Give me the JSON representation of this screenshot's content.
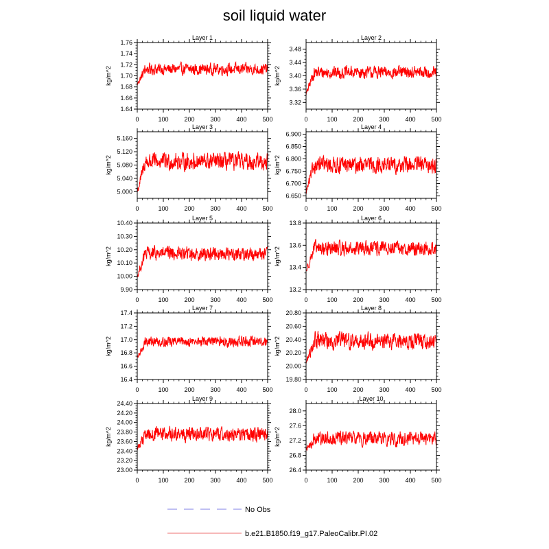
{
  "figure": {
    "title": "soil liquid water"
  },
  "legend": {
    "items": [
      {
        "label": "No Obs",
        "style": "dashed",
        "color": "#aaaaee"
      },
      {
        "label": "b.e21.B1850.f19_g17.PaleoCalibr.PI.02",
        "style": "solid",
        "color": "#f4a0a0"
      }
    ]
  },
  "chart_data": [
    {
      "type": "line",
      "title": "Layer 1",
      "ylabel": "kg/m^2",
      "xlim": [
        0,
        500
      ],
      "ylim": [
        1.64,
        1.76
      ],
      "xticks": [
        "0",
        "100",
        "200",
        "300",
        "400",
        "500"
      ],
      "yticks": [
        "1.64",
        "1.66",
        "1.68",
        "1.70",
        "1.72",
        "1.74",
        "1.76"
      ],
      "series": [
        {
          "color": "#ff0000",
          "n": 500,
          "start": 1.685,
          "mean": 1.712,
          "amp": 0.014
        }
      ]
    },
    {
      "type": "line",
      "title": "Layer 2",
      "ylabel": "kg/m^2",
      "xlim": [
        0,
        500
      ],
      "ylim": [
        3.3,
        3.5
      ],
      "xticks": [
        "0",
        "100",
        "200",
        "300",
        "400",
        "500"
      ],
      "yticks": [
        "3.32",
        "3.36",
        "3.40",
        "3.44",
        "3.48"
      ],
      "series": [
        {
          "color": "#ff0000",
          "n": 500,
          "start": 3.345,
          "mean": 3.41,
          "amp": 0.025
        }
      ]
    },
    {
      "type": "line",
      "title": "Layer 3",
      "ylabel": "kg/m^2",
      "xlim": [
        0,
        500
      ],
      "ylim": [
        4.98,
        5.18
      ],
      "xticks": [
        "0",
        "100",
        "200",
        "300",
        "400",
        "500"
      ],
      "yticks": [
        "5.000",
        "5.040",
        "5.080",
        "5.120",
        "5.160"
      ],
      "series": [
        {
          "color": "#ff0000",
          "n": 500,
          "start": 5.0,
          "mean": 5.09,
          "amp": 0.035
        }
      ]
    },
    {
      "type": "line",
      "title": "Layer 4",
      "ylabel": "kg/m^2",
      "xlim": [
        0,
        500
      ],
      "ylim": [
        6.64,
        6.91
      ],
      "xticks": [
        "0",
        "100",
        "200",
        "300",
        "400",
        "500"
      ],
      "yticks": [
        "6.650",
        "6.700",
        "6.750",
        "6.800",
        "6.850",
        "6.900"
      ],
      "series": [
        {
          "color": "#ff0000",
          "n": 500,
          "start": 6.665,
          "mean": 6.775,
          "amp": 0.045
        }
      ]
    },
    {
      "type": "line",
      "title": "Layer 5",
      "ylabel": "kg/m^2",
      "xlim": [
        0,
        500
      ],
      "ylim": [
        9.9,
        10.4
      ],
      "xticks": [
        "0",
        "100",
        "200",
        "300",
        "400",
        "500"
      ],
      "yticks": [
        "9.90",
        "10.00",
        "10.10",
        "10.20",
        "10.30",
        "10.40"
      ],
      "series": [
        {
          "color": "#ff0000",
          "n": 500,
          "start": 10.0,
          "mean": 10.17,
          "amp": 0.07
        }
      ]
    },
    {
      "type": "line",
      "title": "Layer 6",
      "ylabel": "kg/m^2",
      "xlim": [
        0,
        500
      ],
      "ylim": [
        13.2,
        13.8
      ],
      "xticks": [
        "0",
        "100",
        "200",
        "300",
        "400",
        "500"
      ],
      "yticks": [
        "13.2",
        "13.4",
        "13.6",
        "13.8"
      ],
      "series": [
        {
          "color": "#ff0000",
          "n": 500,
          "start": 13.37,
          "mean": 13.57,
          "amp": 0.09
        }
      ]
    },
    {
      "type": "line",
      "title": "Layer 7",
      "ylabel": "kg/m^2",
      "xlim": [
        0,
        500
      ],
      "ylim": [
        16.4,
        17.4
      ],
      "xticks": [
        "0",
        "100",
        "200",
        "300",
        "400",
        "500"
      ],
      "yticks": [
        "16.4",
        "16.6",
        "16.8",
        "17.0",
        "17.2",
        "17.4"
      ],
      "series": [
        {
          "color": "#ff0000",
          "n": 500,
          "start": 16.72,
          "mean": 16.97,
          "amp": 0.1
        }
      ]
    },
    {
      "type": "line",
      "title": "Layer 8",
      "ylabel": "kg/m^2",
      "xlim": [
        0,
        500
      ],
      "ylim": [
        19.8,
        20.8
      ],
      "xticks": [
        "0",
        "100",
        "200",
        "300",
        "400",
        "500"
      ],
      "yticks": [
        "19.80",
        "20.00",
        "20.20",
        "20.40",
        "20.60",
        "20.80"
      ],
      "series": [
        {
          "color": "#ff0000",
          "n": 500,
          "start": 20.05,
          "mean": 20.38,
          "amp": 0.17
        }
      ]
    },
    {
      "type": "line",
      "title": "Layer 9",
      "ylabel": "kg/m^2",
      "xlim": [
        0,
        500
      ],
      "ylim": [
        23.0,
        24.4
      ],
      "xticks": [
        "0",
        "100",
        "200",
        "300",
        "400",
        "500"
      ],
      "yticks": [
        "23.00",
        "23.20",
        "23.40",
        "23.60",
        "23.80",
        "24.00",
        "24.20",
        "24.40"
      ],
      "series": [
        {
          "color": "#ff0000",
          "n": 500,
          "start": 23.45,
          "mean": 23.75,
          "amp": 0.2
        }
      ]
    },
    {
      "type": "line",
      "title": "Layer 10",
      "ylabel": "kg/m^2",
      "xlim": [
        0,
        500
      ],
      "ylim": [
        26.4,
        28.2
      ],
      "xticks": [
        "0",
        "100",
        "200",
        "300",
        "400",
        "500"
      ],
      "yticks": [
        "26.4",
        "26.8",
        "27.2",
        "27.6",
        "28.0"
      ],
      "series": [
        {
          "color": "#ff0000",
          "n": 500,
          "start": 26.95,
          "mean": 27.25,
          "amp": 0.25
        }
      ]
    }
  ]
}
